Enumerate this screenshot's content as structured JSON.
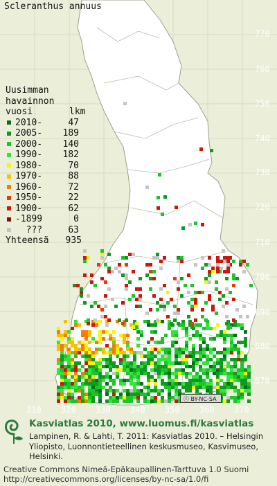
{
  "species": "Scleranthus annuus",
  "legend": {
    "heading_lines": [
      "Uusimman",
      "havainnon",
      "vuosi"
    ],
    "count_header": "lkm",
    "rows": [
      {
        "label": "2010-",
        "count": "47",
        "color": "#0b6e1a"
      },
      {
        "label": "2005-",
        "count": "189",
        "color": "#119a22"
      },
      {
        "label": "2000-",
        "count": "140",
        "color": "#1dc42c"
      },
      {
        "label": "1990-",
        "count": "182",
        "color": "#33e43a"
      },
      {
        "label": "1980-",
        "count": "70",
        "color": "#f5f505"
      },
      {
        "label": "1970-",
        "count": "88",
        "color": "#f6c200"
      },
      {
        "label": "1960-",
        "count": "72",
        "color": "#f57d00"
      },
      {
        "label": "1950-",
        "count": "22",
        "color": "#e83c07"
      },
      {
        "label": "1900-",
        "count": "62",
        "color": "#d0150c"
      },
      {
        "label": "-1899",
        "count": "0",
        "color": "#8a0e0e"
      },
      {
        "label": "???",
        "count": "63",
        "color": "#c4c4c4"
      }
    ],
    "total_label": "Yhteensä",
    "total": "935"
  },
  "axes": {
    "northing_labels": [
      "770",
      "760",
      "750",
      "740",
      "730",
      "720",
      "710",
      "700",
      "690",
      "680",
      "670"
    ],
    "easting_labels": [
      "310",
      "320",
      "330",
      "340",
      "350",
      "360",
      "370"
    ]
  },
  "cc_badge": "BY-NC-SA",
  "credits": {
    "title": "Kasviatlas 2010, www.luomus.fi/kasviatlas",
    "text": "Lampinen, R. & Lahti, T. 2011: Kasviatlas 2010. – Helsingin Yliopisto, Luonnontieteellinen keskusmuseo, Kasvimuseo, Helsinki.",
    "license_line1": "Creative Commons Nimeä-Epäkaupallinen-Tarttuva 1.0 Suomi",
    "license_line2": "http://creativecommons.org/licenses/by-nc-sa/1.0/fi"
  },
  "colors": {
    "background": "#ebeed9",
    "land": "#ffffff",
    "grid": "#d9dcc4",
    "brand_green": "#2e7a3e"
  }
}
